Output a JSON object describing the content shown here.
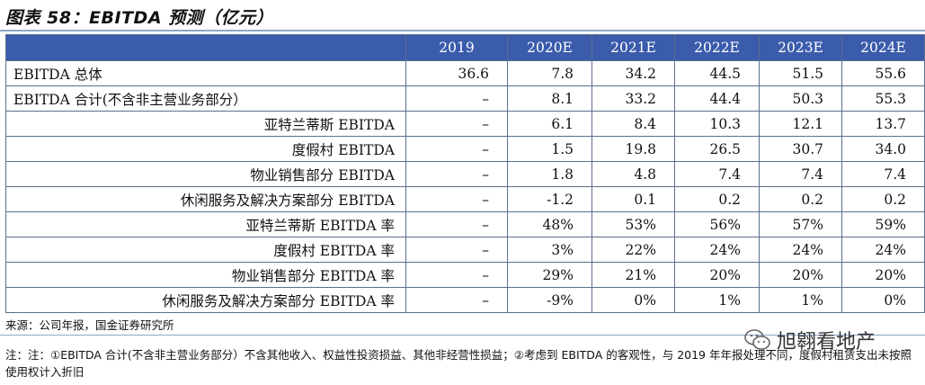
{
  "title": "图表 58：EBITDA 预测（亿元）",
  "table": {
    "headers": [
      "",
      "2019",
      "2020E",
      "2021E",
      "2022E",
      "2023E",
      "2024E"
    ],
    "rows": [
      {
        "label": "EBITDA 总体",
        "align": "left",
        "values": [
          "36.6",
          "7.8",
          "34.2",
          "44.5",
          "51.5",
          "55.6"
        ]
      },
      {
        "label": "EBITDA 合计(不含非主营业务部分）",
        "align": "left",
        "values": [
          "–",
          "8.1",
          "33.2",
          "44.4",
          "50.3",
          "55.3"
        ]
      },
      {
        "label": "亚特兰蒂斯 EBITDA",
        "align": "right",
        "values": [
          "–",
          "6.1",
          "8.4",
          "10.3",
          "12.1",
          "13.7"
        ]
      },
      {
        "label": "度假村 EBITDA",
        "align": "right",
        "values": [
          "–",
          "1.5",
          "19.8",
          "26.5",
          "30.7",
          "34.0"
        ]
      },
      {
        "label": "物业销售部分 EBITDA",
        "align": "right",
        "values": [
          "–",
          "1.8",
          "4.8",
          "7.4",
          "7.4",
          "7.4"
        ]
      },
      {
        "label": "休闲服务及解决方案部分 EBITDA",
        "align": "right",
        "values": [
          "–",
          "-1.2",
          "0.1",
          "0.2",
          "0.2",
          "0.2"
        ]
      },
      {
        "label": "亚特兰蒂斯 EBITDA 率",
        "align": "right",
        "values": [
          "–",
          "48%",
          "53%",
          "56%",
          "57%",
          "59%"
        ]
      },
      {
        "label": "度假村 EBITDA 率",
        "align": "right",
        "values": [
          "–",
          "3%",
          "22%",
          "24%",
          "24%",
          "24%"
        ]
      },
      {
        "label": "物业销售部分 EBITDA 率",
        "align": "right",
        "values": [
          "–",
          "29%",
          "21%",
          "20%",
          "20%",
          "20%"
        ]
      },
      {
        "label": "休闲服务及解决方案部分 EBITDA 率",
        "align": "right",
        "values": [
          "–",
          "-9%",
          "0%",
          "1%",
          "1%",
          "0%"
        ]
      }
    ]
  },
  "source": "来源：公司年报，国金证券研究所",
  "note": "注：注：①EBITDA 合计(不含非主营业务部分）不含其他收入、权益性投资损益、其他非经营性损益；②考虑到 EBITDA 的客观性，与 2019 年年报处理不同，度假村租赁支出未按照使用权计入折旧",
  "watermark": {
    "text": "旭翱看地产",
    "icon": "wechat-icon"
  },
  "colors": {
    "header_bg": "#3b5bab",
    "header_text": "#ffffff",
    "border": "#5a6f8e",
    "rule": "#8ea7c8"
  }
}
